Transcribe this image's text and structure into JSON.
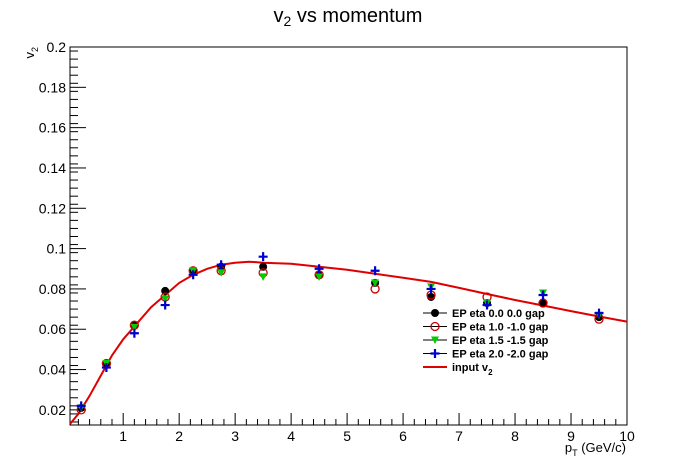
{
  "chart_data": {
    "type": "scatter",
    "title": {
      "main": "v",
      "sub": "2",
      "rest": " vs momentum"
    },
    "xlabel": {
      "main": "p",
      "sub": "T",
      "rest": " (GeV/c)"
    },
    "ylabel": {
      "main": "v",
      "sub": "2"
    },
    "xlim": [
      0.05,
      10.0
    ],
    "ylim": [
      0.0125,
      0.2
    ],
    "x_ticks": [
      "1",
      "2",
      "3",
      "4",
      "5",
      "6",
      "7",
      "8",
      "9",
      "10"
    ],
    "y_ticks": [
      "0.02",
      "0.04",
      "0.06",
      "0.08",
      "0.1",
      "0.12",
      "0.14",
      "0.16",
      "0.18",
      "0.2"
    ],
    "grid": false,
    "legend_position": "bottom-right",
    "series": [
      {
        "name": "EP eta 0.0 0.0 gap",
        "marker": "filled-circle",
        "color": "#000000",
        "points": [
          [
            0.25,
            0.021
          ],
          [
            0.7,
            0.043
          ],
          [
            1.2,
            0.062
          ],
          [
            1.75,
            0.079
          ],
          [
            2.25,
            0.089
          ],
          [
            2.75,
            0.091
          ],
          [
            3.5,
            0.091
          ],
          [
            4.5,
            0.087
          ],
          [
            5.5,
            0.083
          ],
          [
            6.5,
            0.076
          ],
          [
            7.5,
            0.073
          ],
          [
            8.5,
            0.073
          ],
          [
            9.5,
            0.066
          ]
        ]
      },
      {
        "name": "EP eta 1.0 -1.0 gap",
        "marker": "open-circle",
        "color": "#cc0000",
        "points": [
          [
            0.25,
            0.02
          ],
          [
            0.7,
            0.043
          ],
          [
            1.2,
            0.062
          ],
          [
            1.75,
            0.076
          ],
          [
            2.25,
            0.089
          ],
          [
            2.75,
            0.089
          ],
          [
            3.5,
            0.088
          ],
          [
            4.5,
            0.087
          ],
          [
            5.5,
            0.08
          ],
          [
            6.5,
            0.077
          ],
          [
            7.5,
            0.076
          ],
          [
            8.5,
            0.073
          ],
          [
            9.5,
            0.065
          ]
        ]
      },
      {
        "name": "EP eta 1.5 -1.5 gap",
        "marker": "triangle-down",
        "color": "#00cc00",
        "points": [
          [
            0.25,
            0.021
          ],
          [
            0.7,
            0.043
          ],
          [
            1.2,
            0.061
          ],
          [
            1.75,
            0.075
          ],
          [
            2.25,
            0.089
          ],
          [
            2.75,
            0.088
          ],
          [
            3.5,
            0.086
          ],
          [
            4.5,
            0.086
          ],
          [
            5.5,
            0.083
          ],
          [
            6.5,
            0.081
          ],
          [
            7.5,
            0.073
          ],
          [
            8.5,
            0.078
          ],
          [
            9.5,
            0.067
          ]
        ]
      },
      {
        "name": "EP eta 2.0 -2.0 gap",
        "marker": "plus",
        "color": "#0000cc",
        "points": [
          [
            0.25,
            0.022
          ],
          [
            0.7,
            0.041
          ],
          [
            1.2,
            0.058
          ],
          [
            1.75,
            0.072
          ],
          [
            2.25,
            0.087
          ],
          [
            2.75,
            0.092
          ],
          [
            3.5,
            0.096
          ],
          [
            4.5,
            0.09
          ],
          [
            5.5,
            0.089
          ],
          [
            6.5,
            0.08
          ],
          [
            7.5,
            0.072
          ],
          [
            8.5,
            0.077
          ],
          [
            9.5,
            0.068
          ]
        ]
      }
    ],
    "curve": {
      "name_main": "input v",
      "name_sub": "2",
      "color": "#e00000",
      "points": [
        [
          0.05,
          0.013
        ],
        [
          0.2,
          0.018
        ],
        [
          0.4,
          0.027
        ],
        [
          0.6,
          0.037
        ],
        [
          0.8,
          0.047
        ],
        [
          1.0,
          0.055
        ],
        [
          1.25,
          0.063
        ],
        [
          1.5,
          0.071
        ],
        [
          1.75,
          0.077
        ],
        [
          2.0,
          0.083
        ],
        [
          2.25,
          0.087
        ],
        [
          2.5,
          0.09
        ],
        [
          2.75,
          0.092
        ],
        [
          3.0,
          0.093
        ],
        [
          3.25,
          0.0935
        ],
        [
          3.5,
          0.093
        ],
        [
          4.0,
          0.0925
        ],
        [
          4.5,
          0.091
        ],
        [
          5.0,
          0.0895
        ],
        [
          5.5,
          0.0875
        ],
        [
          6.0,
          0.0855
        ],
        [
          6.5,
          0.0835
        ],
        [
          7.0,
          0.0805
        ],
        [
          7.5,
          0.0775
        ],
        [
          8.0,
          0.0745
        ],
        [
          8.5,
          0.0718
        ],
        [
          9.0,
          0.069
        ],
        [
          9.5,
          0.0663
        ],
        [
          10.0,
          0.0638
        ]
      ]
    }
  }
}
